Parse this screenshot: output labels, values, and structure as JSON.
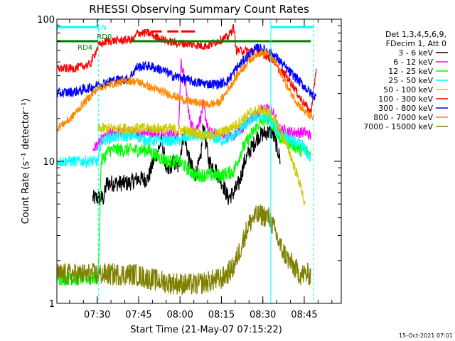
{
  "chart_data": {
    "type": "line",
    "title": "RHESSI Observing Summary Count Rates",
    "xlabel": "Start Time (21-May-07 07:15:22)",
    "ylabel": "Count Rate (s⁻¹ detector⁻¹)",
    "yscale": "log",
    "ylim": [
      1,
      100
    ],
    "xlim_min": [
      0,
      103
    ],
    "x_ticks": [
      {
        "t": 14.6,
        "label": "07:30"
      },
      {
        "t": 29.6,
        "label": "07:45"
      },
      {
        "t": 44.6,
        "label": "08:00"
      },
      {
        "t": 59.6,
        "label": "08:15"
      },
      {
        "t": 74.6,
        "label": "08:30"
      },
      {
        "t": 89.6,
        "label": "08:45"
      }
    ],
    "y_ticks": [
      {
        "v": 1,
        "label": "1"
      },
      {
        "v": 10,
        "label": "10"
      },
      {
        "v": 100,
        "label": "100"
      }
    ],
    "legend": {
      "placement": "right",
      "header": [
        "Det 1,3,4,5,6,9,",
        "FDecim 1, Att 0"
      ]
    },
    "series": [
      {
        "name": "3 - 6 keV",
        "color": "#000000",
        "noise": 0.06,
        "points": [
          [
            13,
            5.5
          ],
          [
            17,
            5.5
          ],
          [
            18,
            7
          ],
          [
            26,
            7
          ],
          [
            29,
            7.5
          ],
          [
            33,
            7.5
          ],
          [
            35,
            10
          ],
          [
            38,
            14
          ],
          [
            40,
            8
          ],
          [
            42,
            10
          ],
          [
            44,
            9
          ],
          [
            46,
            16
          ],
          [
            48,
            10
          ],
          [
            50,
            8
          ],
          [
            52,
            10
          ],
          [
            53,
            18
          ],
          [
            55,
            10
          ],
          [
            57,
            9
          ],
          [
            60,
            7
          ],
          [
            62,
            5.5
          ],
          [
            64,
            6
          ],
          [
            66,
            7
          ],
          [
            68,
            10
          ],
          [
            70,
            12
          ],
          [
            73,
            15
          ],
          [
            76,
            16
          ],
          [
            78,
            16
          ],
          [
            79,
            14
          ],
          [
            80,
            12
          ],
          [
            81,
            10
          ]
        ]
      },
      {
        "name": "6 - 12 keV",
        "color": "#ff00ff",
        "noise": 0.04,
        "points": [
          [
            13,
            12
          ],
          [
            16,
            14
          ],
          [
            20,
            16
          ],
          [
            25,
            16
          ],
          [
            29,
            16
          ],
          [
            33,
            16
          ],
          [
            38,
            16
          ],
          [
            44,
            15
          ],
          [
            45,
            50
          ],
          [
            46,
            40
          ],
          [
            47,
            30
          ],
          [
            48,
            20
          ],
          [
            50,
            16
          ],
          [
            52,
            20
          ],
          [
            53,
            25
          ],
          [
            55,
            16
          ],
          [
            60,
            15
          ],
          [
            64,
            15
          ],
          [
            67,
            17
          ],
          [
            70,
            20
          ],
          [
            73,
            22
          ],
          [
            76,
            24
          ],
          [
            79,
            21
          ],
          [
            80,
            17
          ],
          [
            85,
            16
          ],
          [
            90,
            16
          ],
          [
            92,
            15
          ]
        ]
      },
      {
        "name": "12 - 25 keV",
        "color": "#00ff00",
        "noise": 0.05,
        "points": [
          [
            0,
            1.5
          ],
          [
            15,
            1.5
          ],
          [
            16,
            10
          ],
          [
            19,
            12
          ],
          [
            25,
            12
          ],
          [
            29,
            12
          ],
          [
            33,
            12
          ],
          [
            36,
            11
          ],
          [
            40,
            10
          ],
          [
            44,
            10
          ],
          [
            47,
            9
          ],
          [
            50,
            8
          ],
          [
            52,
            8
          ],
          [
            55,
            8
          ],
          [
            60,
            8
          ],
          [
            64,
            8.5
          ],
          [
            67,
            12
          ],
          [
            70,
            15
          ],
          [
            73,
            18
          ],
          [
            76,
            20
          ],
          [
            78,
            19
          ],
          [
            79,
            17
          ],
          [
            80,
            15
          ],
          [
            83,
            14
          ],
          [
            86,
            13
          ],
          [
            88,
            12
          ],
          [
            90,
            12
          ],
          [
            92,
            11
          ]
        ]
      },
      {
        "name": "25 - 50 keV",
        "color": "#00ffff",
        "noise": 0.04,
        "points": [
          [
            0,
            10
          ],
          [
            12,
            10
          ],
          [
            15,
            10
          ],
          [
            16,
            14
          ],
          [
            22,
            15
          ],
          [
            29,
            15
          ],
          [
            33,
            14
          ],
          [
            38,
            14
          ],
          [
            44,
            14
          ],
          [
            48,
            15
          ],
          [
            52,
            15
          ],
          [
            55,
            15
          ],
          [
            60,
            14
          ],
          [
            64,
            15
          ],
          [
            67,
            17
          ],
          [
            71,
            20
          ],
          [
            74,
            21
          ],
          [
            76,
            20
          ],
          [
            79,
            18
          ],
          [
            80,
            16
          ],
          [
            85,
            14
          ],
          [
            89,
            13
          ],
          [
            92,
            10
          ]
        ]
      },
      {
        "name": "50 - 100 keV",
        "color": "#cccc00",
        "noise": 0.04,
        "points": [
          [
            15,
            17
          ],
          [
            20,
            17
          ],
          [
            30,
            17
          ],
          [
            33,
            17
          ],
          [
            40,
            17
          ],
          [
            50,
            16
          ],
          [
            55,
            15
          ],
          [
            60,
            16
          ],
          [
            65,
            18
          ],
          [
            70,
            22
          ],
          [
            74,
            23
          ],
          [
            77,
            22
          ],
          [
            80,
            18
          ],
          [
            84,
            12
          ],
          [
            87,
            8
          ],
          [
            89,
            6
          ],
          [
            90,
            4.5
          ]
        ]
      },
      {
        "name": "100 - 300 keV",
        "color": "#ff0000",
        "noise": 0.03,
        "points": [
          [
            0,
            45
          ],
          [
            6,
            45
          ],
          [
            12,
            48
          ],
          [
            15,
            65
          ],
          [
            18,
            70
          ],
          [
            28,
            72
          ],
          [
            29,
            80
          ],
          [
            33,
            80
          ],
          [
            36,
            75
          ],
          [
            40,
            70
          ],
          [
            43,
            68
          ],
          [
            48,
            67
          ],
          [
            52,
            65
          ],
          [
            55,
            65
          ],
          [
            58,
            70
          ],
          [
            62,
            75
          ],
          [
            64,
            88
          ],
          [
            65,
            60
          ],
          [
            68,
            60
          ],
          [
            72,
            60
          ],
          [
            76,
            55
          ],
          [
            79,
            50
          ],
          [
            80,
            45
          ],
          [
            83,
            40
          ],
          [
            86,
            33
          ],
          [
            88,
            28
          ],
          [
            90,
            25
          ],
          [
            92,
            22
          ],
          [
            94,
            45
          ]
        ]
      },
      {
        "name": "300 - 800 keV",
        "color": "#0000ff",
        "noise": 0.035,
        "points": [
          [
            0,
            30
          ],
          [
            7,
            31
          ],
          [
            12,
            33
          ],
          [
            16,
            35
          ],
          [
            20,
            37
          ],
          [
            26,
            38
          ],
          [
            29,
            46
          ],
          [
            33,
            47
          ],
          [
            38,
            44
          ],
          [
            42,
            40
          ],
          [
            46,
            38
          ],
          [
            50,
            36
          ],
          [
            55,
            35
          ],
          [
            59,
            35
          ],
          [
            62,
            37
          ],
          [
            65,
            45
          ],
          [
            68,
            52
          ],
          [
            71,
            60
          ],
          [
            73,
            63
          ],
          [
            76,
            60
          ],
          [
            79,
            55
          ],
          [
            81,
            50
          ],
          [
            84,
            43
          ],
          [
            87,
            38
          ],
          [
            90,
            33
          ],
          [
            92,
            30
          ],
          [
            94,
            28
          ]
        ]
      },
      {
        "name": "800 - 7000 keV",
        "color": "#ff8800",
        "noise": 0.03,
        "points": [
          [
            0,
            17
          ],
          [
            5,
            20
          ],
          [
            10,
            26
          ],
          [
            15,
            33
          ],
          [
            20,
            35
          ],
          [
            26,
            37
          ],
          [
            30,
            36
          ],
          [
            34,
            33
          ],
          [
            38,
            31
          ],
          [
            42,
            29
          ],
          [
            46,
            27
          ],
          [
            50,
            26
          ],
          [
            55,
            25
          ],
          [
            59,
            26
          ],
          [
            62,
            32
          ],
          [
            66,
            42
          ],
          [
            70,
            52
          ],
          [
            73,
            58
          ],
          [
            76,
            58
          ],
          [
            79,
            50
          ],
          [
            81,
            42
          ],
          [
            84,
            32
          ],
          [
            87,
            26
          ],
          [
            90,
            22
          ],
          [
            93,
            20
          ]
        ]
      },
      {
        "name": "7000 - 15000 keV",
        "color": "#808000",
        "noise": 0.08,
        "points": [
          [
            0,
            1.6
          ],
          [
            10,
            1.6
          ],
          [
            15,
            1.6
          ],
          [
            20,
            1.6
          ],
          [
            28,
            1.6
          ],
          [
            33,
            1.5
          ],
          [
            40,
            1.4
          ],
          [
            50,
            1.35
          ],
          [
            60,
            1.5
          ],
          [
            64,
            1.8
          ],
          [
            67,
            2.6
          ],
          [
            69,
            3.4
          ],
          [
            71,
            4.0
          ],
          [
            74,
            4.2
          ],
          [
            77,
            4.0
          ],
          [
            79,
            3.2
          ],
          [
            81,
            2.5
          ],
          [
            84,
            2.0
          ],
          [
            88,
            1.6
          ],
          [
            92,
            1.6
          ]
        ]
      }
    ],
    "annotations": {
      "N": {
        "label": "N",
        "color": "#00ffff",
        "level": 88,
        "segments": [
          [
            0,
            15
          ],
          [
            77.5,
            93
          ]
        ]
      },
      "RD0": {
        "label": "RD0",
        "color": "#008000",
        "level": 70,
        "segments": [
          [
            0,
            15
          ],
          [
            27,
            92
          ]
        ]
      },
      "RD4": {
        "label": "RD4",
        "color": "#008000"
      },
      "red_dashes": {
        "color": "#ff0000",
        "level": 82,
        "segments": [
          [
            34,
            38
          ],
          [
            40,
            44
          ],
          [
            45,
            50
          ]
        ]
      }
    },
    "vlines": {
      "cyan_solid": [
        77.5
      ],
      "cyan_dashed": [
        15,
        93
      ]
    },
    "footer": "15-Oct-2021 07:01"
  }
}
